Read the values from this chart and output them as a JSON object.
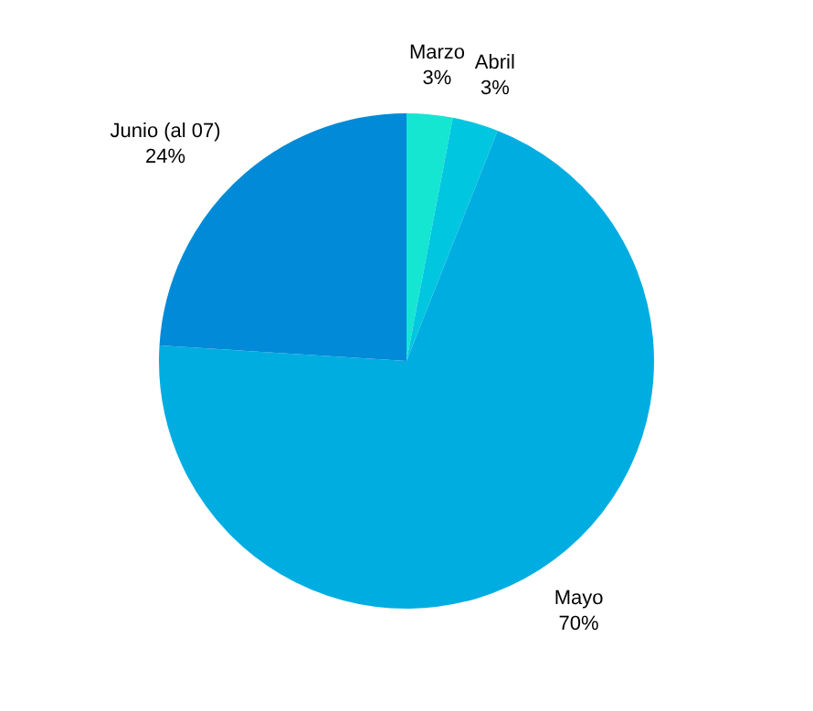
{
  "chart_data": {
    "type": "pie",
    "categories": [
      "Marzo",
      "Abril",
      "Mayo",
      "Junio (al 07)"
    ],
    "values": [
      3,
      3,
      70,
      24
    ],
    "value_labels": [
      "3%",
      "3%",
      "70%",
      "24%"
    ],
    "colors": [
      "#14e6d2",
      "#00c6e0",
      "#00ade1",
      "#008ad8"
    ],
    "legend": false
  }
}
